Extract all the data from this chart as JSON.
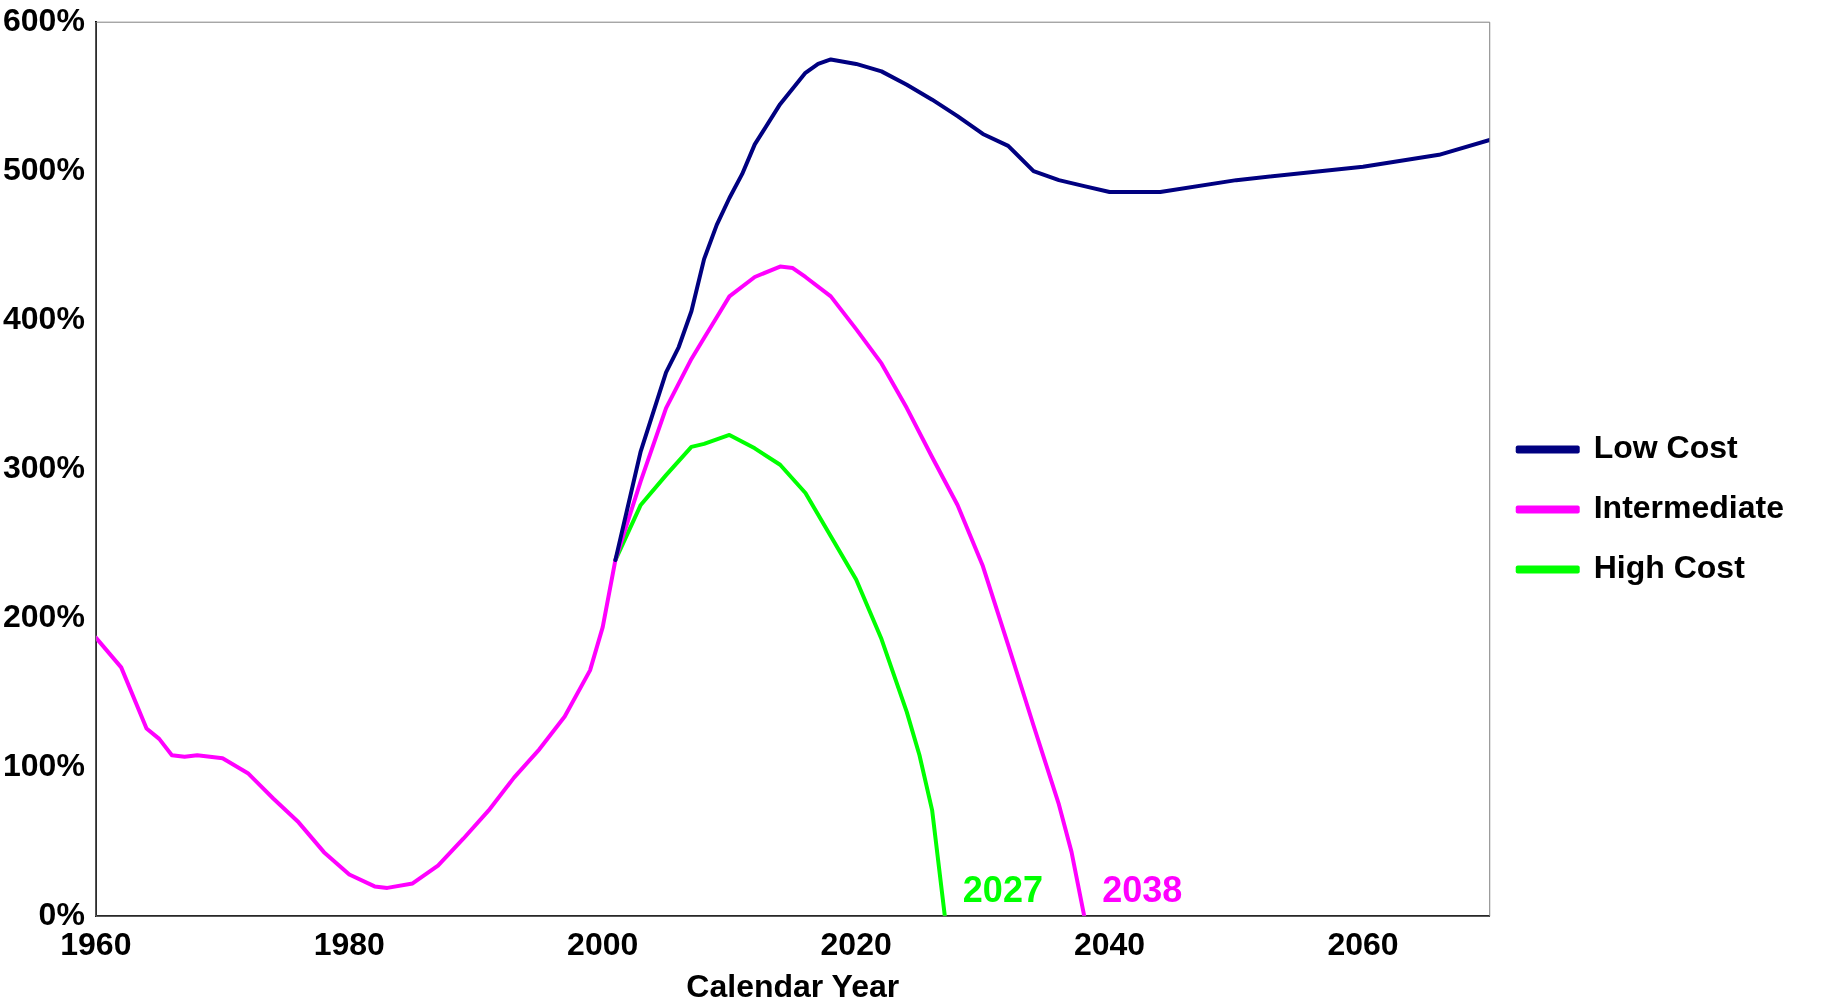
{
  "chart_data": {
    "type": "line",
    "xlabel": "Calendar Year",
    "xlim": [
      1960,
      2070
    ],
    "xticks": [
      1960,
      1980,
      2000,
      2020,
      2040,
      2060
    ],
    "ylim": [
      0,
      600
    ],
    "yticks": [
      {
        "value": 0,
        "label": "0%"
      },
      {
        "value": 100,
        "label": "100%"
      },
      {
        "value": 200,
        "label": "200%"
      },
      {
        "value": 300,
        "label": "300%"
      },
      {
        "value": 400,
        "label": "400%"
      },
      {
        "value": 500,
        "label": "500%"
      },
      {
        "value": 600,
        "label": "600%"
      }
    ],
    "grid": false,
    "legend": "right",
    "marker": "none",
    "line_style": "solid",
    "series": [
      {
        "name": "Low Cost",
        "color": "#000080",
        "x": [
          2001,
          2003,
          2005,
          2006,
          2007,
          2008,
          2009,
          2010,
          2011,
          2012,
          2014,
          2016,
          2017,
          2018,
          2020,
          2022,
          2024,
          2026,
          2028,
          2030,
          2032,
          2034,
          2036,
          2038,
          2040,
          2044,
          2050,
          2060,
          2066,
          2070
        ],
        "values": [
          239,
          312,
          365,
          382,
          406,
          441,
          464,
          482,
          498,
          518,
          545,
          566,
          572,
          575,
          572,
          567,
          558,
          548,
          537,
          525,
          517,
          500,
          494,
          490,
          486,
          486,
          494,
          503,
          511,
          521
        ]
      },
      {
        "name": "Intermediate",
        "color": "#ff00ff",
        "x": [
          1960,
          1962,
          1964,
          1965,
          1966,
          1967,
          1968,
          1970,
          1972,
          1974,
          1976,
          1978,
          1980,
          1982,
          1983,
          1985,
          1987,
          1989,
          1991,
          1993,
          1995,
          1997,
          1999,
          2000,
          2001,
          2003,
          2005,
          2007,
          2008,
          2009,
          2010,
          2012,
          2014,
          2015,
          2016,
          2018,
          2020,
          2022,
          2024,
          2026,
          2028,
          2030,
          2032,
          2034,
          2036,
          2037,
          2038
        ],
        "values": [
          187,
          167,
          126,
          119,
          108,
          107,
          108,
          106,
          96,
          79,
          63,
          43,
          28,
          20,
          19,
          22,
          34,
          52,
          71,
          93,
          112,
          134,
          165,
          194,
          239,
          292,
          341,
          374,
          388,
          402,
          416,
          429,
          436,
          435,
          429,
          416,
          394,
          371,
          341,
          308,
          276,
          235,
          182,
          128,
          75,
          43,
          0
        ]
      },
      {
        "name": "High Cost",
        "color": "#00ff00",
        "x": [
          2001,
          2003,
          2005,
          2007,
          2008,
          2010,
          2012,
          2014,
          2016,
          2018,
          2020,
          2022,
          2024,
          2025,
          2026,
          2027
        ],
        "values": [
          239,
          276,
          296,
          315,
          317,
          323,
          314,
          303,
          284,
          255,
          226,
          186,
          137,
          108,
          71,
          0
        ]
      }
    ],
    "annotations": [
      {
        "text": "2027",
        "x": 2027,
        "y": 0
      },
      {
        "text": "2038",
        "x": 2038,
        "y": 0
      }
    ]
  }
}
